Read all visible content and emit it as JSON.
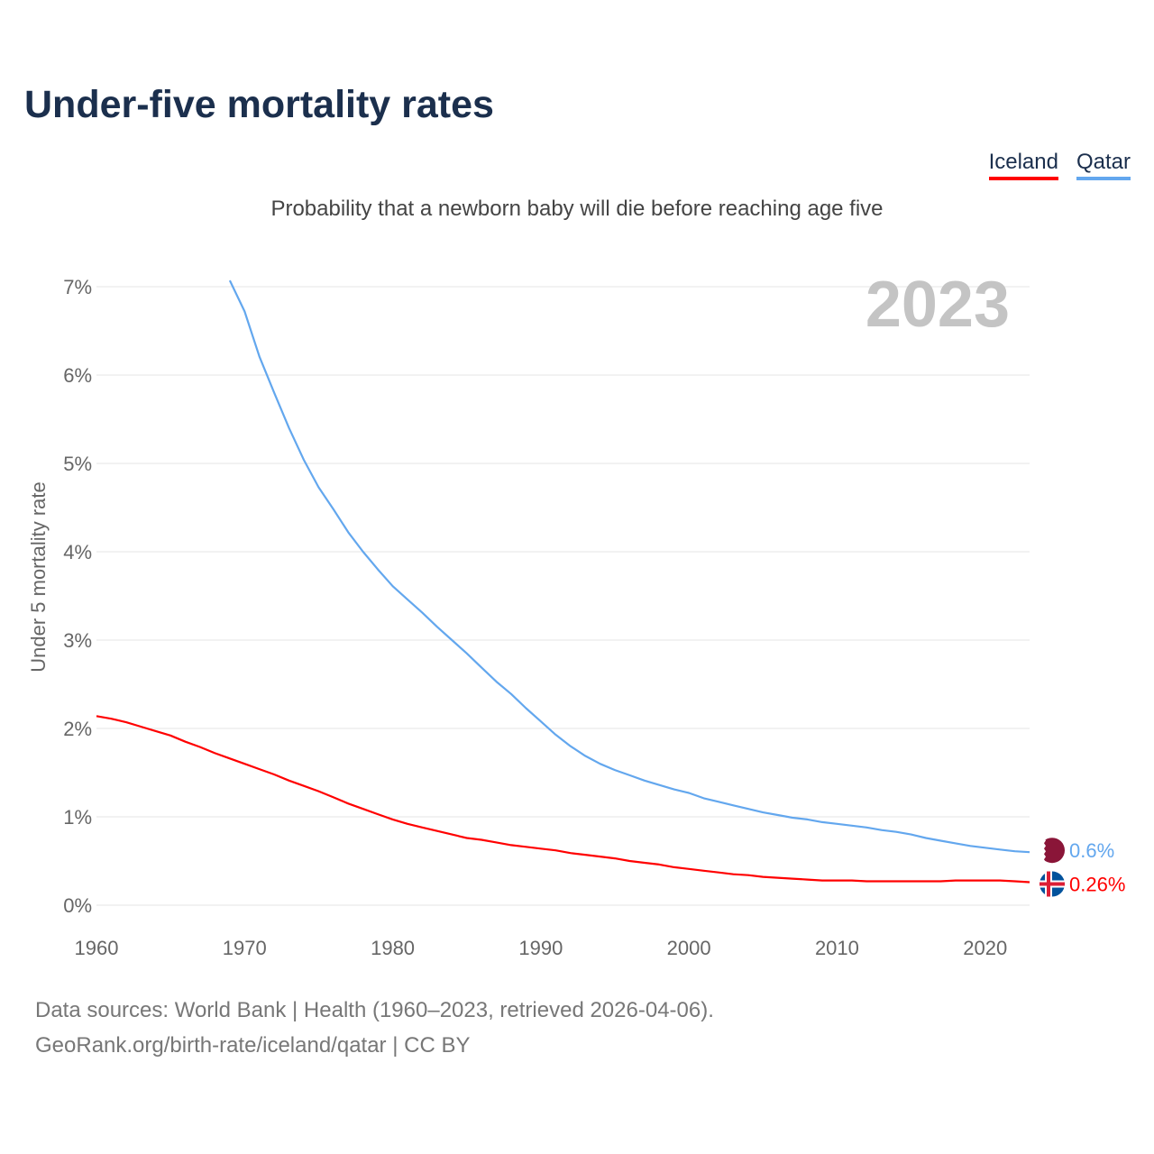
{
  "title": "Under-five mortality rates",
  "legend": [
    {
      "name": "Iceland",
      "color": "#ff0000"
    },
    {
      "name": "Qatar",
      "color": "#63a7ee"
    }
  ],
  "footer": {
    "line1": "Data sources: World Bank | Health (1960–2023, retrieved 2026-04-06).",
    "line2": "GeoRank.org/birth-rate/iceland/qatar | CC BY"
  },
  "chart_data": {
    "type": "line",
    "title": "Under-five mortality rates",
    "subtitle": "Probability that a newborn baby will die before reaching age five",
    "ylabel": "Under 5 mortality rate",
    "xlabel": "",
    "year_label": "2023",
    "xlim": [
      1960,
      2023
    ],
    "ylim": [
      0,
      7
    ],
    "xticks": [
      "1960",
      "1970",
      "1980",
      "1990",
      "2000",
      "2010",
      "2020"
    ],
    "yticks": [
      "0%",
      "1%",
      "2%",
      "3%",
      "4%",
      "5%",
      "6%",
      "7%"
    ],
    "grid": true,
    "legend_position": "top-right",
    "series": [
      {
        "name": "Iceland",
        "color": "#ff0000",
        "end_label": "0.26%",
        "start_year": 1960,
        "values": [
          2.14,
          2.11,
          2.07,
          2.02,
          1.97,
          1.92,
          1.85,
          1.79,
          1.72,
          1.66,
          1.6,
          1.54,
          1.48,
          1.41,
          1.35,
          1.29,
          1.22,
          1.15,
          1.09,
          1.03,
          0.97,
          0.92,
          0.88,
          0.84,
          0.8,
          0.76,
          0.74,
          0.71,
          0.68,
          0.66,
          0.64,
          0.62,
          0.59,
          0.57,
          0.55,
          0.53,
          0.5,
          0.48,
          0.46,
          0.43,
          0.41,
          0.39,
          0.37,
          0.35,
          0.34,
          0.32,
          0.31,
          0.3,
          0.29,
          0.28,
          0.28,
          0.28,
          0.27,
          0.27,
          0.27,
          0.27,
          0.27,
          0.27,
          0.28,
          0.28,
          0.28,
          0.28,
          0.27,
          0.26
        ]
      },
      {
        "name": "Qatar",
        "color": "#63a7ee",
        "end_label": "0.6%",
        "start_year": 1969,
        "values": [
          7.07,
          6.72,
          6.21,
          5.8,
          5.4,
          5.04,
          4.73,
          4.48,
          4.22,
          4.0,
          3.8,
          3.61,
          3.46,
          3.31,
          3.15,
          3.0,
          2.85,
          2.69,
          2.53,
          2.39,
          2.23,
          2.08,
          1.93,
          1.8,
          1.69,
          1.6,
          1.53,
          1.47,
          1.41,
          1.36,
          1.31,
          1.27,
          1.21,
          1.17,
          1.13,
          1.09,
          1.05,
          1.02,
          0.99,
          0.97,
          0.94,
          0.92,
          0.9,
          0.88,
          0.85,
          0.83,
          0.8,
          0.76,
          0.73,
          0.7,
          0.67,
          0.65,
          0.63,
          0.61,
          0.6
        ]
      }
    ]
  }
}
